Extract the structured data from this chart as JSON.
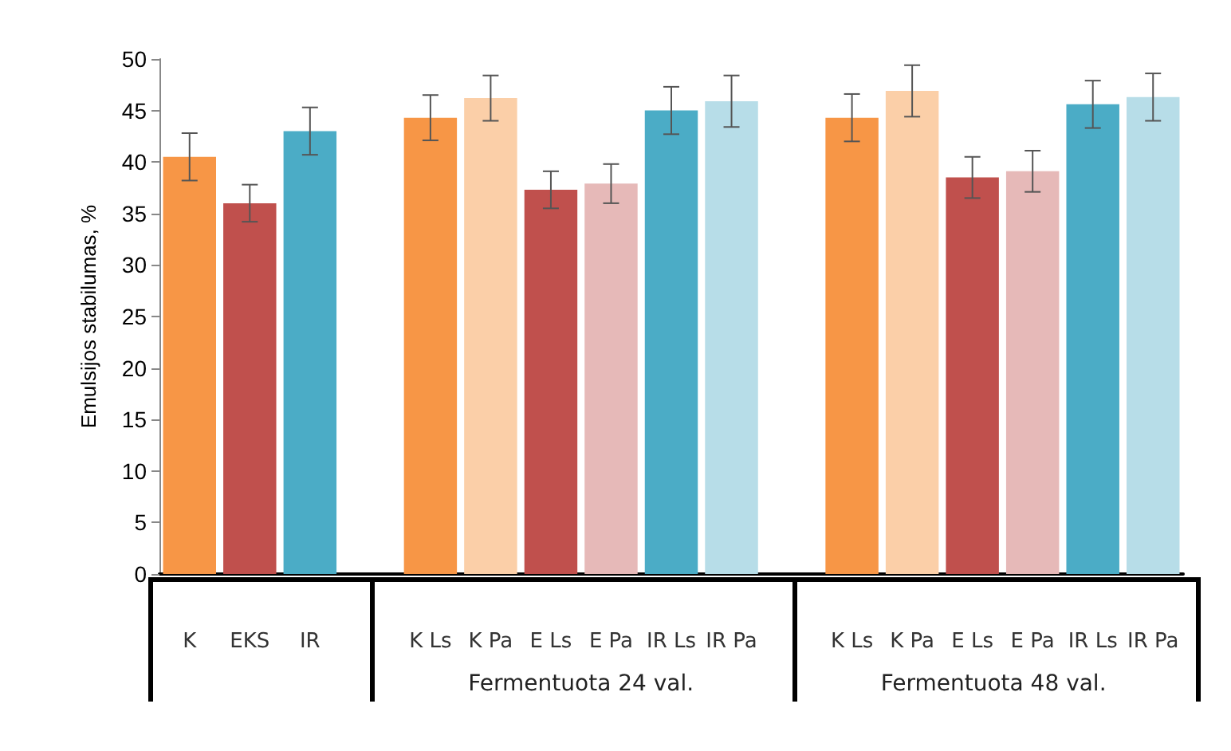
{
  "chart_data": {
    "type": "bar",
    "ylabel": "Emulsijos stabilumas, %",
    "categories": [
      "K",
      "EKS",
      "IR",
      null,
      "K Ls",
      "K Pa",
      "E Ls",
      "E Pa",
      "IR Ls",
      "IR Pa",
      null,
      "K Ls",
      "K Pa",
      "E Ls",
      "E Pa",
      "IR Ls",
      "IR Pa"
    ],
    "values": [
      40.5,
      36,
      43,
      null,
      44.3,
      46.2,
      37.3,
      37.9,
      45,
      45.9,
      null,
      44.3,
      46.9,
      38.5,
      39.1,
      45.6,
      46.3
    ],
    "errors": [
      2.3,
      1.8,
      2.3,
      null,
      2.2,
      2.2,
      1.8,
      1.9,
      2.3,
      2.5,
      null,
      2.3,
      2.5,
      2,
      2,
      2.3,
      2.3
    ],
    "colors": [
      "#f79646",
      "#c0504d",
      "#4bacc6",
      "#ffffff",
      "#f79646",
      "#fbcfa8",
      "#c0504d",
      "#e6b9b8",
      "#4bacc6",
      "#b7dde8",
      "#ffffff",
      "#f79646",
      "#fbcfa8",
      "#c0504d",
      "#e6b9b8",
      "#4bacc6",
      "#b7dde8"
    ],
    "annotations": [
      "Fermentuota 24 val.",
      "Fermentuota 48 val."
    ],
    "ylim": [
      0,
      50
    ],
    "yticks": [
      0,
      5,
      10,
      15,
      20,
      25,
      30,
      35,
      40,
      45,
      50
    ]
  }
}
